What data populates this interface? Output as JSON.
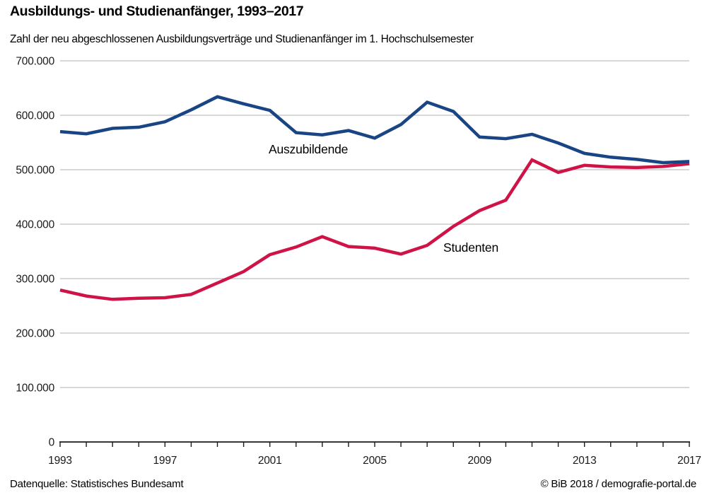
{
  "header": {
    "title": "Ausbildungs- und Studienanfänger, 1993–2017",
    "subtitle": "Zahl der neu abgeschlossenen Ausbildungsverträge und Studienanfänger im 1. Hochschulsemester"
  },
  "chart_data": {
    "type": "line",
    "x": [
      1993,
      1994,
      1995,
      1996,
      1997,
      1998,
      1999,
      2000,
      2001,
      2002,
      2003,
      2004,
      2005,
      2006,
      2007,
      2008,
      2009,
      2010,
      2011,
      2012,
      2013,
      2014,
      2015,
      2016,
      2017
    ],
    "xticks": [
      1993,
      1997,
      2001,
      2005,
      2009,
      2013,
      2017
    ],
    "ylim": [
      0,
      700000
    ],
    "ytick_step": 100000,
    "ytick_labels": [
      "0",
      "100.000",
      "200.000",
      "300.000",
      "400.000",
      "500.000",
      "600.000",
      "700.000"
    ],
    "grid": "horizontal-gray",
    "legend_position": "inline-labels-on-plot",
    "series": [
      {
        "name": "Studenten",
        "color": "#d01347",
        "values": [
          279000,
          268000,
          262000,
          264000,
          265000,
          271000,
          292000,
          313000,
          344000,
          358000,
          377000,
          359000,
          356000,
          345000,
          361000,
          396000,
          425000,
          444000,
          518000,
          495000,
          508000,
          505000,
          504000,
          506000,
          511000
        ]
      },
      {
        "name": "Auszubildende",
        "color": "#1a4585",
        "values": [
          570000,
          566000,
          576000,
          578000,
          588000,
          610000,
          634000,
          621000,
          609000,
          568000,
          564000,
          572000,
          558000,
          583000,
          624000,
          607000,
          560000,
          557000,
          565000,
          549000,
          530000,
          523000,
          519000,
          513000,
          515000
        ]
      }
    ]
  },
  "colors": {
    "gridline": "#b0b0b0",
    "axis": "#1a1a1a",
    "tick_label": "#1a1a1a"
  },
  "footer": {
    "source": "Datenquelle: Statistisches Bundesamt",
    "copyright": "© BiB 2018 / demografie-portal.de"
  }
}
